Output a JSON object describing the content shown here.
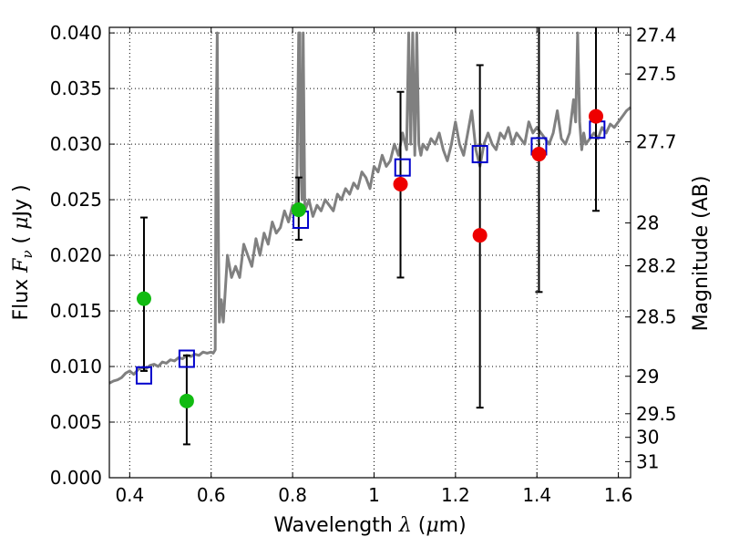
{
  "chart_data": {
    "type": "scatter",
    "xlabel": {
      "prefix": "Wavelength  ",
      "lambda": "λ",
      "open": " (",
      "mu": "μ",
      "unit": "m)"
    },
    "ylabel": {
      "prefix": "Flux  ",
      "sym": "F",
      "sub": "ν",
      "open": "  ( ",
      "mu": "μ",
      "unit": "Jy )"
    },
    "y2label": "Magnitude (AB)",
    "xlim": [
      0.35,
      1.63
    ],
    "ylim": [
      0.0,
      0.0405
    ],
    "x_ticks": [
      "0.4",
      "0.6",
      "0.8",
      "1",
      "1.2",
      "1.4",
      "1.6"
    ],
    "x_tick_values": [
      0.4,
      0.6,
      0.8,
      1.0,
      1.2,
      1.4,
      1.6
    ],
    "y_ticks": [
      "0.000",
      "0.005",
      "0.010",
      "0.015",
      "0.020",
      "0.025",
      "0.030",
      "0.035",
      "0.040"
    ],
    "y_tick_values": [
      0.0,
      0.005,
      0.01,
      0.015,
      0.02,
      0.025,
      0.03,
      0.035,
      0.04
    ],
    "mag_ticks": [
      "27.4",
      "27.5",
      "27.7",
      "28",
      "28.2",
      "28.5",
      "29",
      "29.5",
      "30",
      "31"
    ],
    "mag_tick_values": [
      27.4,
      27.5,
      27.7,
      28.0,
      28.2,
      28.5,
      29.0,
      29.5,
      30.0,
      31.0
    ],
    "grid": true,
    "colors": {
      "model": "#808080",
      "template": "#0000cc",
      "optical": "#11bb11",
      "nir": "#ee0000",
      "errorbar": "#000000"
    },
    "model_spectrum": {
      "x": [
        0.35,
        0.36,
        0.37,
        0.38,
        0.39,
        0.4,
        0.41,
        0.42,
        0.43,
        0.44,
        0.45,
        0.46,
        0.47,
        0.48,
        0.49,
        0.5,
        0.51,
        0.52,
        0.53,
        0.54,
        0.55,
        0.56,
        0.57,
        0.58,
        0.59,
        0.6,
        0.605,
        0.61,
        0.612,
        0.615,
        0.618,
        0.62,
        0.625,
        0.63,
        0.64,
        0.65,
        0.66,
        0.67,
        0.68,
        0.69,
        0.7,
        0.71,
        0.72,
        0.73,
        0.74,
        0.75,
        0.76,
        0.77,
        0.78,
        0.79,
        0.8,
        0.805,
        0.81,
        0.815,
        0.818,
        0.82,
        0.823,
        0.826,
        0.83,
        0.84,
        0.85,
        0.86,
        0.87,
        0.88,
        0.89,
        0.9,
        0.91,
        0.92,
        0.93,
        0.94,
        0.95,
        0.96,
        0.97,
        0.98,
        0.99,
        1.0,
        1.01,
        1.02,
        1.03,
        1.04,
        1.05,
        1.06,
        1.07,
        1.08,
        1.085,
        1.09,
        1.095,
        1.1,
        1.105,
        1.11,
        1.115,
        1.12,
        1.13,
        1.14,
        1.15,
        1.16,
        1.17,
        1.18,
        1.19,
        1.2,
        1.21,
        1.22,
        1.23,
        1.24,
        1.25,
        1.26,
        1.27,
        1.28,
        1.29,
        1.3,
        1.31,
        1.32,
        1.33,
        1.34,
        1.35,
        1.36,
        1.37,
        1.38,
        1.39,
        1.4,
        1.41,
        1.42,
        1.43,
        1.44,
        1.45,
        1.46,
        1.47,
        1.48,
        1.49,
        1.495,
        1.5,
        1.505,
        1.51,
        1.515,
        1.52,
        1.53,
        1.54,
        1.55,
        1.56,
        1.57,
        1.58,
        1.59,
        1.6,
        1.61,
        1.62,
        1.63
      ],
      "y": [
        0.0085,
        0.0087,
        0.0088,
        0.009,
        0.0094,
        0.0096,
        0.0093,
        0.0097,
        0.0099,
        0.0098,
        0.0101,
        0.0102,
        0.01,
        0.0104,
        0.0103,
        0.0106,
        0.0105,
        0.0108,
        0.0107,
        0.011,
        0.0109,
        0.0111,
        0.011,
        0.0113,
        0.0112,
        0.0113,
        0.0112,
        0.0115,
        0.03,
        0.04,
        0.02,
        0.014,
        0.016,
        0.014,
        0.02,
        0.018,
        0.019,
        0.018,
        0.021,
        0.02,
        0.019,
        0.0215,
        0.02,
        0.022,
        0.021,
        0.023,
        0.022,
        0.0225,
        0.024,
        0.023,
        0.0245,
        0.024,
        0.025,
        0.04,
        0.04,
        0.028,
        0.025,
        0.04,
        0.024,
        0.025,
        0.0235,
        0.0245,
        0.024,
        0.025,
        0.0245,
        0.024,
        0.0255,
        0.025,
        0.026,
        0.0255,
        0.0265,
        0.026,
        0.0275,
        0.027,
        0.026,
        0.028,
        0.0275,
        0.029,
        0.028,
        0.0285,
        0.03,
        0.029,
        0.031,
        0.0295,
        0.04,
        0.03,
        0.04,
        0.029,
        0.04,
        0.03,
        0.029,
        0.03,
        0.0295,
        0.0305,
        0.03,
        0.031,
        0.0295,
        0.0285,
        0.03,
        0.032,
        0.03,
        0.029,
        0.031,
        0.033,
        0.0295,
        0.028,
        0.03,
        0.031,
        0.03,
        0.0295,
        0.031,
        0.0305,
        0.0315,
        0.03,
        0.031,
        0.0305,
        0.03,
        0.032,
        0.031,
        0.0315,
        0.031,
        0.0305,
        0.03,
        0.031,
        0.033,
        0.0305,
        0.03,
        0.031,
        0.034,
        0.032,
        0.04,
        0.032,
        0.0295,
        0.031,
        0.03,
        0.0305,
        0.031,
        0.0305,
        0.0315,
        0.031,
        0.0318,
        0.0315,
        0.032,
        0.0325,
        0.033,
        0.0333
      ]
    },
    "series": [
      {
        "key": "template",
        "marker": "open-square",
        "x": [
          0.435,
          0.54,
          0.82,
          1.07,
          1.26,
          1.405,
          1.548
        ],
        "y": [
          0.0092,
          0.0107,
          0.0232,
          0.0279,
          0.0291,
          0.0298,
          0.0313
        ]
      },
      {
        "key": "optical",
        "marker": "filled-circle",
        "x": [
          0.435,
          0.54,
          0.815
        ],
        "y": [
          0.0161,
          0.0069,
          0.0241
        ],
        "yerr_low": [
          0.0096,
          0.003,
          0.0214
        ],
        "yerr_high": [
          0.0234,
          0.011,
          0.027
        ]
      },
      {
        "key": "nir",
        "marker": "filled-circle",
        "x": [
          1.065,
          1.26,
          1.405,
          1.545
        ],
        "y": [
          0.0264,
          0.0218,
          0.0291,
          0.0325
        ],
        "yerr_low": [
          0.018,
          0.0063,
          0.0167,
          0.024
        ],
        "yerr_high": [
          0.0347,
          0.0371,
          0.0405,
          0.0405
        ]
      }
    ]
  }
}
